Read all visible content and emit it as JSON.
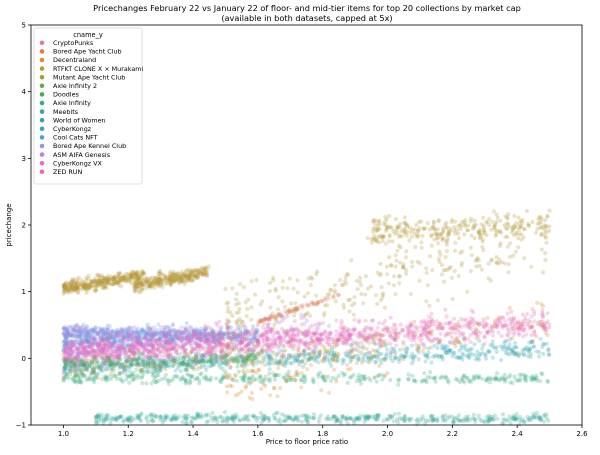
{
  "chart_data": {
    "type": "scatter",
    "title": "Pricechanges February 22 vs January 22 of floor- and mid-tier items for top 20 collections by market cap",
    "subtitle": "(available in both datasets, capped at 5x)",
    "xlabel": "Price to floor price ratio",
    "ylabel": "pricechange",
    "xlim": [
      0.9,
      2.6
    ],
    "ylim": [
      -1,
      5
    ],
    "xticks": [
      "1.0",
      "1.2",
      "1.4",
      "1.6",
      "1.8",
      "2.0",
      "2.2",
      "2.4",
      "2.6"
    ],
    "yticks": [
      "−1",
      "0",
      "1",
      "2",
      "3",
      "4",
      "5"
    ],
    "grid": false,
    "legend": {
      "title": "cname_y",
      "placement": "top-left",
      "entries": [
        {
          "name": "CryptoPunks",
          "color": "#e377a6"
        },
        {
          "name": "Bored Ape Yacht Club",
          "color": "#e07a5b"
        },
        {
          "name": "Decentraland",
          "color": "#d98b2f"
        },
        {
          "name": "RTFKT CLONE X × Murakami",
          "color": "#b79a3c"
        },
        {
          "name": "Mutant Ape Yacht Club",
          "color": "#9aa33c"
        },
        {
          "name": "Axie Infinity 2",
          "color": "#6fa83f"
        },
        {
          "name": "Doodles",
          "color": "#3fae57"
        },
        {
          "name": "Axie Infinity",
          "color": "#35ad7f"
        },
        {
          "name": "Meebits",
          "color": "#34a89a"
        },
        {
          "name": "World of Women",
          "color": "#36a6ad"
        },
        {
          "name": "CyberKongz",
          "color": "#3aa4bf"
        },
        {
          "name": "Cool Cats NFT",
          "color": "#4e9fd6"
        },
        {
          "name": "Bored Ape Kennel Club",
          "color": "#8f98e3"
        },
        {
          "name": "ASM AIFA Genesis",
          "color": "#c27fe0"
        },
        {
          "name": "CyberKongz VX",
          "color": "#de6fd2"
        },
        {
          "name": "ZED RUN",
          "color": "#e76bbd"
        }
      ]
    },
    "clusters": [
      {
        "series": "Meebits",
        "x": [
          1.1,
          2.5
        ],
        "y_start": -0.9,
        "y_end": -0.9,
        "spread": 0.07,
        "count": 450
      },
      {
        "series": "Axie Infinity",
        "x": [
          1.0,
          2.5
        ],
        "y_start": -0.3,
        "y_end": -0.3,
        "spread": 0.08,
        "count": 350
      },
      {
        "series": "World of Women",
        "x": [
          1.0,
          2.5
        ],
        "y_start": -0.15,
        "y_end": 0.1,
        "spread": 0.1,
        "count": 350
      },
      {
        "series": "CyberKongz",
        "x": [
          1.0,
          2.5
        ],
        "y_start": -0.1,
        "y_end": 0.2,
        "spread": 0.12,
        "count": 350
      },
      {
        "series": "Cool Cats NFT",
        "x": [
          1.0,
          1.6
        ],
        "y_start": 0.25,
        "y_end": 0.35,
        "spread": 0.15,
        "count": 400
      },
      {
        "series": "Bored Ape Kennel Club",
        "x": [
          1.0,
          1.5
        ],
        "y_start": 0.4,
        "y_end": 0.35,
        "spread": 0.1,
        "count": 450
      },
      {
        "series": "CryptoPunks",
        "x": [
          1.0,
          2.5
        ],
        "y_start": 0.0,
        "y_end": 0.55,
        "spread": 0.22,
        "count": 700
      },
      {
        "series": "ZED RUN",
        "x": [
          1.0,
          2.5
        ],
        "y_start": 0.15,
        "y_end": 0.5,
        "spread": 0.2,
        "count": 500
      },
      {
        "series": "CyberKongz VX",
        "x": [
          1.0,
          1.9
        ],
        "y_start": 0.1,
        "y_end": 0.35,
        "spread": 0.15,
        "count": 300
      },
      {
        "series": "RTFKT CLONE X × Murakami",
        "x": [
          1.0,
          1.25
        ],
        "y_start": 1.05,
        "y_end": 1.25,
        "spread": 0.1,
        "count": 350
      },
      {
        "series": "RTFKT CLONE X × Murakami",
        "x": [
          1.22,
          1.45
        ],
        "y_start": 1.1,
        "y_end": 1.3,
        "spread": 0.1,
        "count": 300
      },
      {
        "series": "RTFKT CLONE X × Murakami",
        "x": [
          1.5,
          2.5
        ],
        "y_start": 0.6,
        "y_end": 1.8,
        "spread": 0.5,
        "count": 300
      },
      {
        "series": "RTFKT CLONE X × Murakami",
        "x": [
          1.95,
          2.5
        ],
        "y_start": 1.9,
        "y_end": 2.0,
        "spread": 0.2,
        "count": 260
      },
      {
        "series": "Bored Ape Yacht Club",
        "x": [
          1.6,
          1.85
        ],
        "y_start": 0.55,
        "y_end": 0.95,
        "spread": 0.03,
        "count": 60
      },
      {
        "series": "Decentraland",
        "x": [
          1.5,
          2.5
        ],
        "y_start": -0.4,
        "y_end": 0.6,
        "spread": 0.35,
        "count": 150
      },
      {
        "series": "Mutant Ape Yacht Club",
        "x": [
          1.0,
          2.0
        ],
        "y_start": -0.2,
        "y_end": 0.2,
        "spread": 0.2,
        "count": 150
      },
      {
        "series": "ASM AIFA Genesis",
        "x": [
          1.0,
          1.8
        ],
        "y_start": 0.1,
        "y_end": 0.6,
        "spread": 0.15,
        "count": 150
      },
      {
        "series": "Doodles",
        "x": [
          1.0,
          1.6
        ],
        "y_start": -0.1,
        "y_end": 0.0,
        "spread": 0.1,
        "count": 150
      }
    ]
  }
}
